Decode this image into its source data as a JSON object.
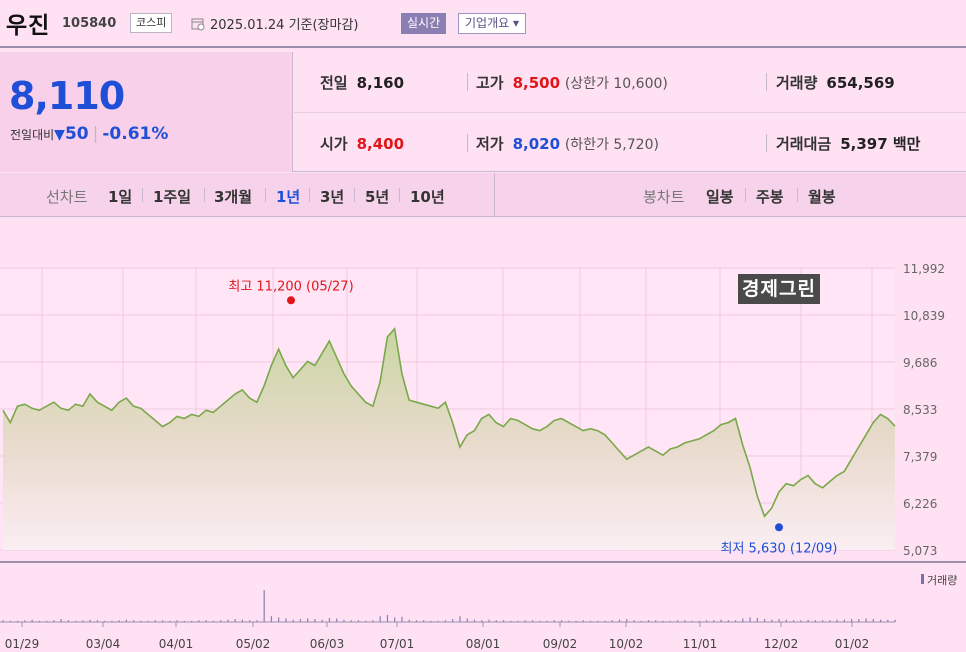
{
  "header": {
    "name": "우진",
    "code": "105840",
    "market": "코스피",
    "date": "2025.01.24 기준(장마감)",
    "realtime": "실시간",
    "company_info": "기업개요 ▾"
  },
  "price": {
    "current": "8,110",
    "change_label": "전일대비",
    "change_arrow": "▼",
    "change_value": "50",
    "change_rate": "-0.61%"
  },
  "info": {
    "prev_close_label": "전일",
    "prev_close": "8,160",
    "high_label": "고가",
    "high": "8,500",
    "upper_limit": "(상한가 10,600)",
    "volume_label": "거래량",
    "volume": "654,569",
    "open_label": "시가",
    "open": "8,400",
    "low_label": "저가",
    "low": "8,020",
    "lower_limit": "(하한가 5,720)",
    "amount_label": "거래대금",
    "amount": "5,397 백만"
  },
  "periods": {
    "label": "선차트",
    "items": [
      "1일",
      "1주일",
      "3개월",
      "1년",
      "3년",
      "5년",
      "10년"
    ],
    "active": "1년"
  },
  "candle": {
    "label": "봉차트",
    "items": [
      "일봉",
      "주봉",
      "월봉"
    ]
  },
  "watermark": "경제그린",
  "colors": {
    "up": "#e0161a",
    "down": "#1f4fd6",
    "line": "#7aa84a",
    "background": "#ffe1f4"
  },
  "chart_data": {
    "type": "area",
    "y_ticks": [
      "11,992",
      "10,839",
      "9,686",
      "8,533",
      "7,379",
      "6,226",
      "5,073"
    ],
    "y_tick_values": [
      11992,
      10839,
      9686,
      8533,
      7379,
      6226,
      5073
    ],
    "ylim": [
      5073,
      11992
    ],
    "x_ticks": [
      "01/29",
      "03/04",
      "04/01",
      "05/02",
      "06/03",
      "07/01",
      "08/01",
      "09/02",
      "10/02",
      "11/01",
      "12/02",
      "01/02"
    ],
    "max_label": "최고 11,200 (05/27)",
    "min_label": "최저 5,630 (12/09)",
    "max_value": 11200,
    "min_value": 5630,
    "volume_label": "거래량",
    "series": [
      {
        "values": [
          8500,
          8200,
          8600,
          8650,
          8550,
          8500,
          8600,
          8700,
          8550,
          8500,
          8650,
          8600,
          8900,
          8700,
          8600,
          8500,
          8700,
          8800,
          8600,
          8550,
          8400,
          8250,
          8100,
          8200,
          8350,
          8300,
          8400,
          8350,
          8500,
          8450,
          8600,
          8750,
          8900,
          9000,
          8800,
          8700,
          9100,
          9600,
          10000,
          9600,
          9300,
          9500,
          9700,
          9600,
          9900,
          10200,
          9800,
          9400,
          9100,
          8900,
          8700,
          8600,
          9200,
          10300,
          10500,
          9400,
          8750,
          8700,
          8650,
          8600,
          8550,
          8700,
          8200,
          7600,
          7900,
          8000,
          8300,
          8400,
          8200,
          8100,
          8300,
          8250,
          8150,
          8050,
          8000,
          8100,
          8250,
          8300,
          8200,
          8100,
          8000,
          8050,
          8000,
          7900,
          7700,
          7500,
          7300,
          7400,
          7500,
          7600,
          7500,
          7400,
          7550,
          7600,
          7700,
          7750,
          7800,
          7900,
          8000,
          8150,
          8200,
          8300,
          7650,
          7100,
          6400,
          5900,
          6100,
          6500,
          6700,
          6650,
          6800,
          6900,
          6700,
          6600,
          6750,
          6900,
          7000,
          7300,
          7600,
          7900,
          8200,
          8400,
          8300,
          8110
        ]
      }
    ]
  }
}
